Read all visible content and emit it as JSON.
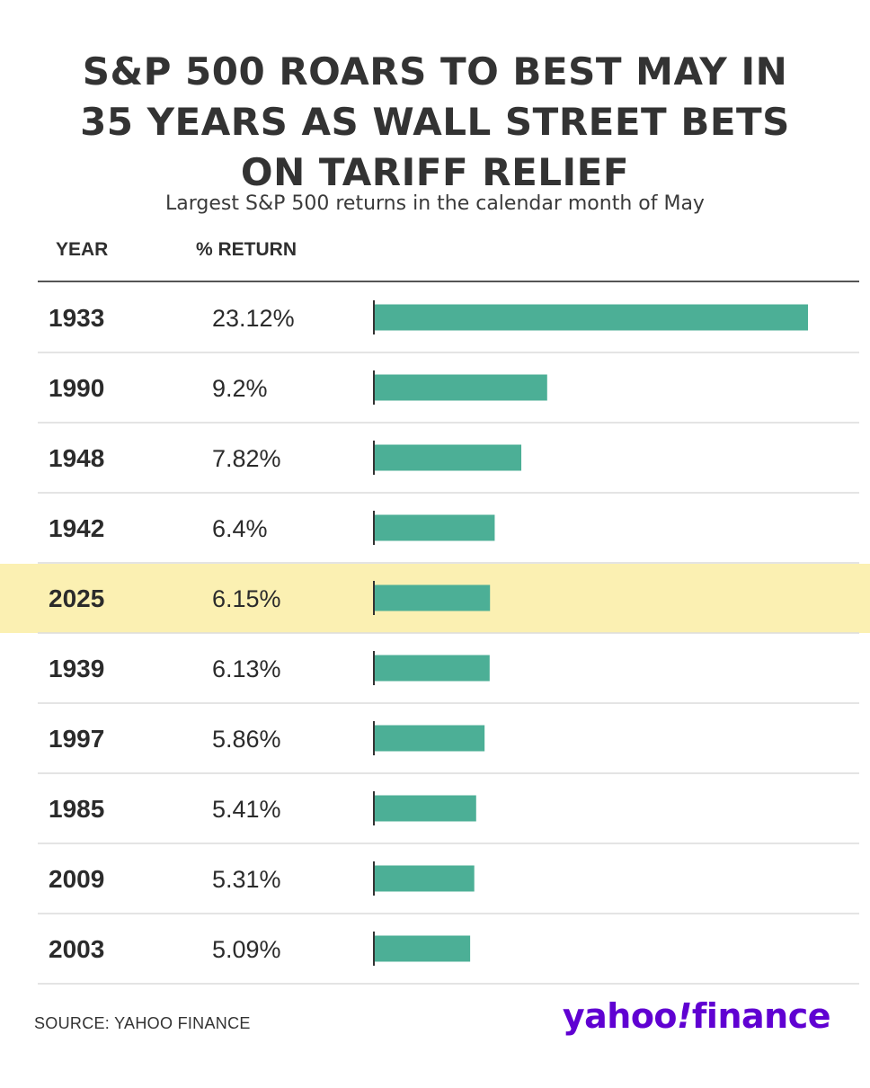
{
  "header": {
    "title_lines": [
      "S&P 500 ROARS TO BEST MAY IN",
      "35 YEARS AS WALL STREET BETS",
      "ON TARIFF RELIEF"
    ],
    "subtitle": "Largest S&P 500 returns in the calendar month of May"
  },
  "columns": {
    "year": "YEAR",
    "return": "% RETURN"
  },
  "chart_data": {
    "type": "bar",
    "orientation": "horizontal",
    "categories": [
      "1933",
      "1990",
      "1948",
      "1942",
      "2025",
      "1939",
      "1997",
      "1985",
      "2009",
      "2003"
    ],
    "values": [
      23.12,
      9.2,
      7.82,
      6.4,
      6.15,
      6.13,
      5.86,
      5.41,
      5.31,
      5.09
    ],
    "value_labels": [
      "23.12%",
      "9.2%",
      "7.82%",
      "6.4%",
      "6.15%",
      "6.13%",
      "5.86%",
      "5.41%",
      "5.31%",
      "5.09%"
    ],
    "highlight_category": "2025",
    "title": "S&P 500 ROARS TO BEST MAY IN 35 YEARS AS WALL STREET BETS ON TARIFF RELIEF",
    "subtitle": "Largest S&P 500 returns in the calendar month of May",
    "xlim": [
      0,
      23.12
    ],
    "grid": false,
    "bar_color": "#4caf96",
    "highlight_color": "#fbf0b2",
    "row_rule_color": "#dcdcdc"
  },
  "footer": {
    "source": "SOURCE: YAHOO FINANCE",
    "logo_text": "yahoo!finance"
  },
  "colors": {
    "brand": "#6001d2",
    "text": "#2b2b2b"
  }
}
